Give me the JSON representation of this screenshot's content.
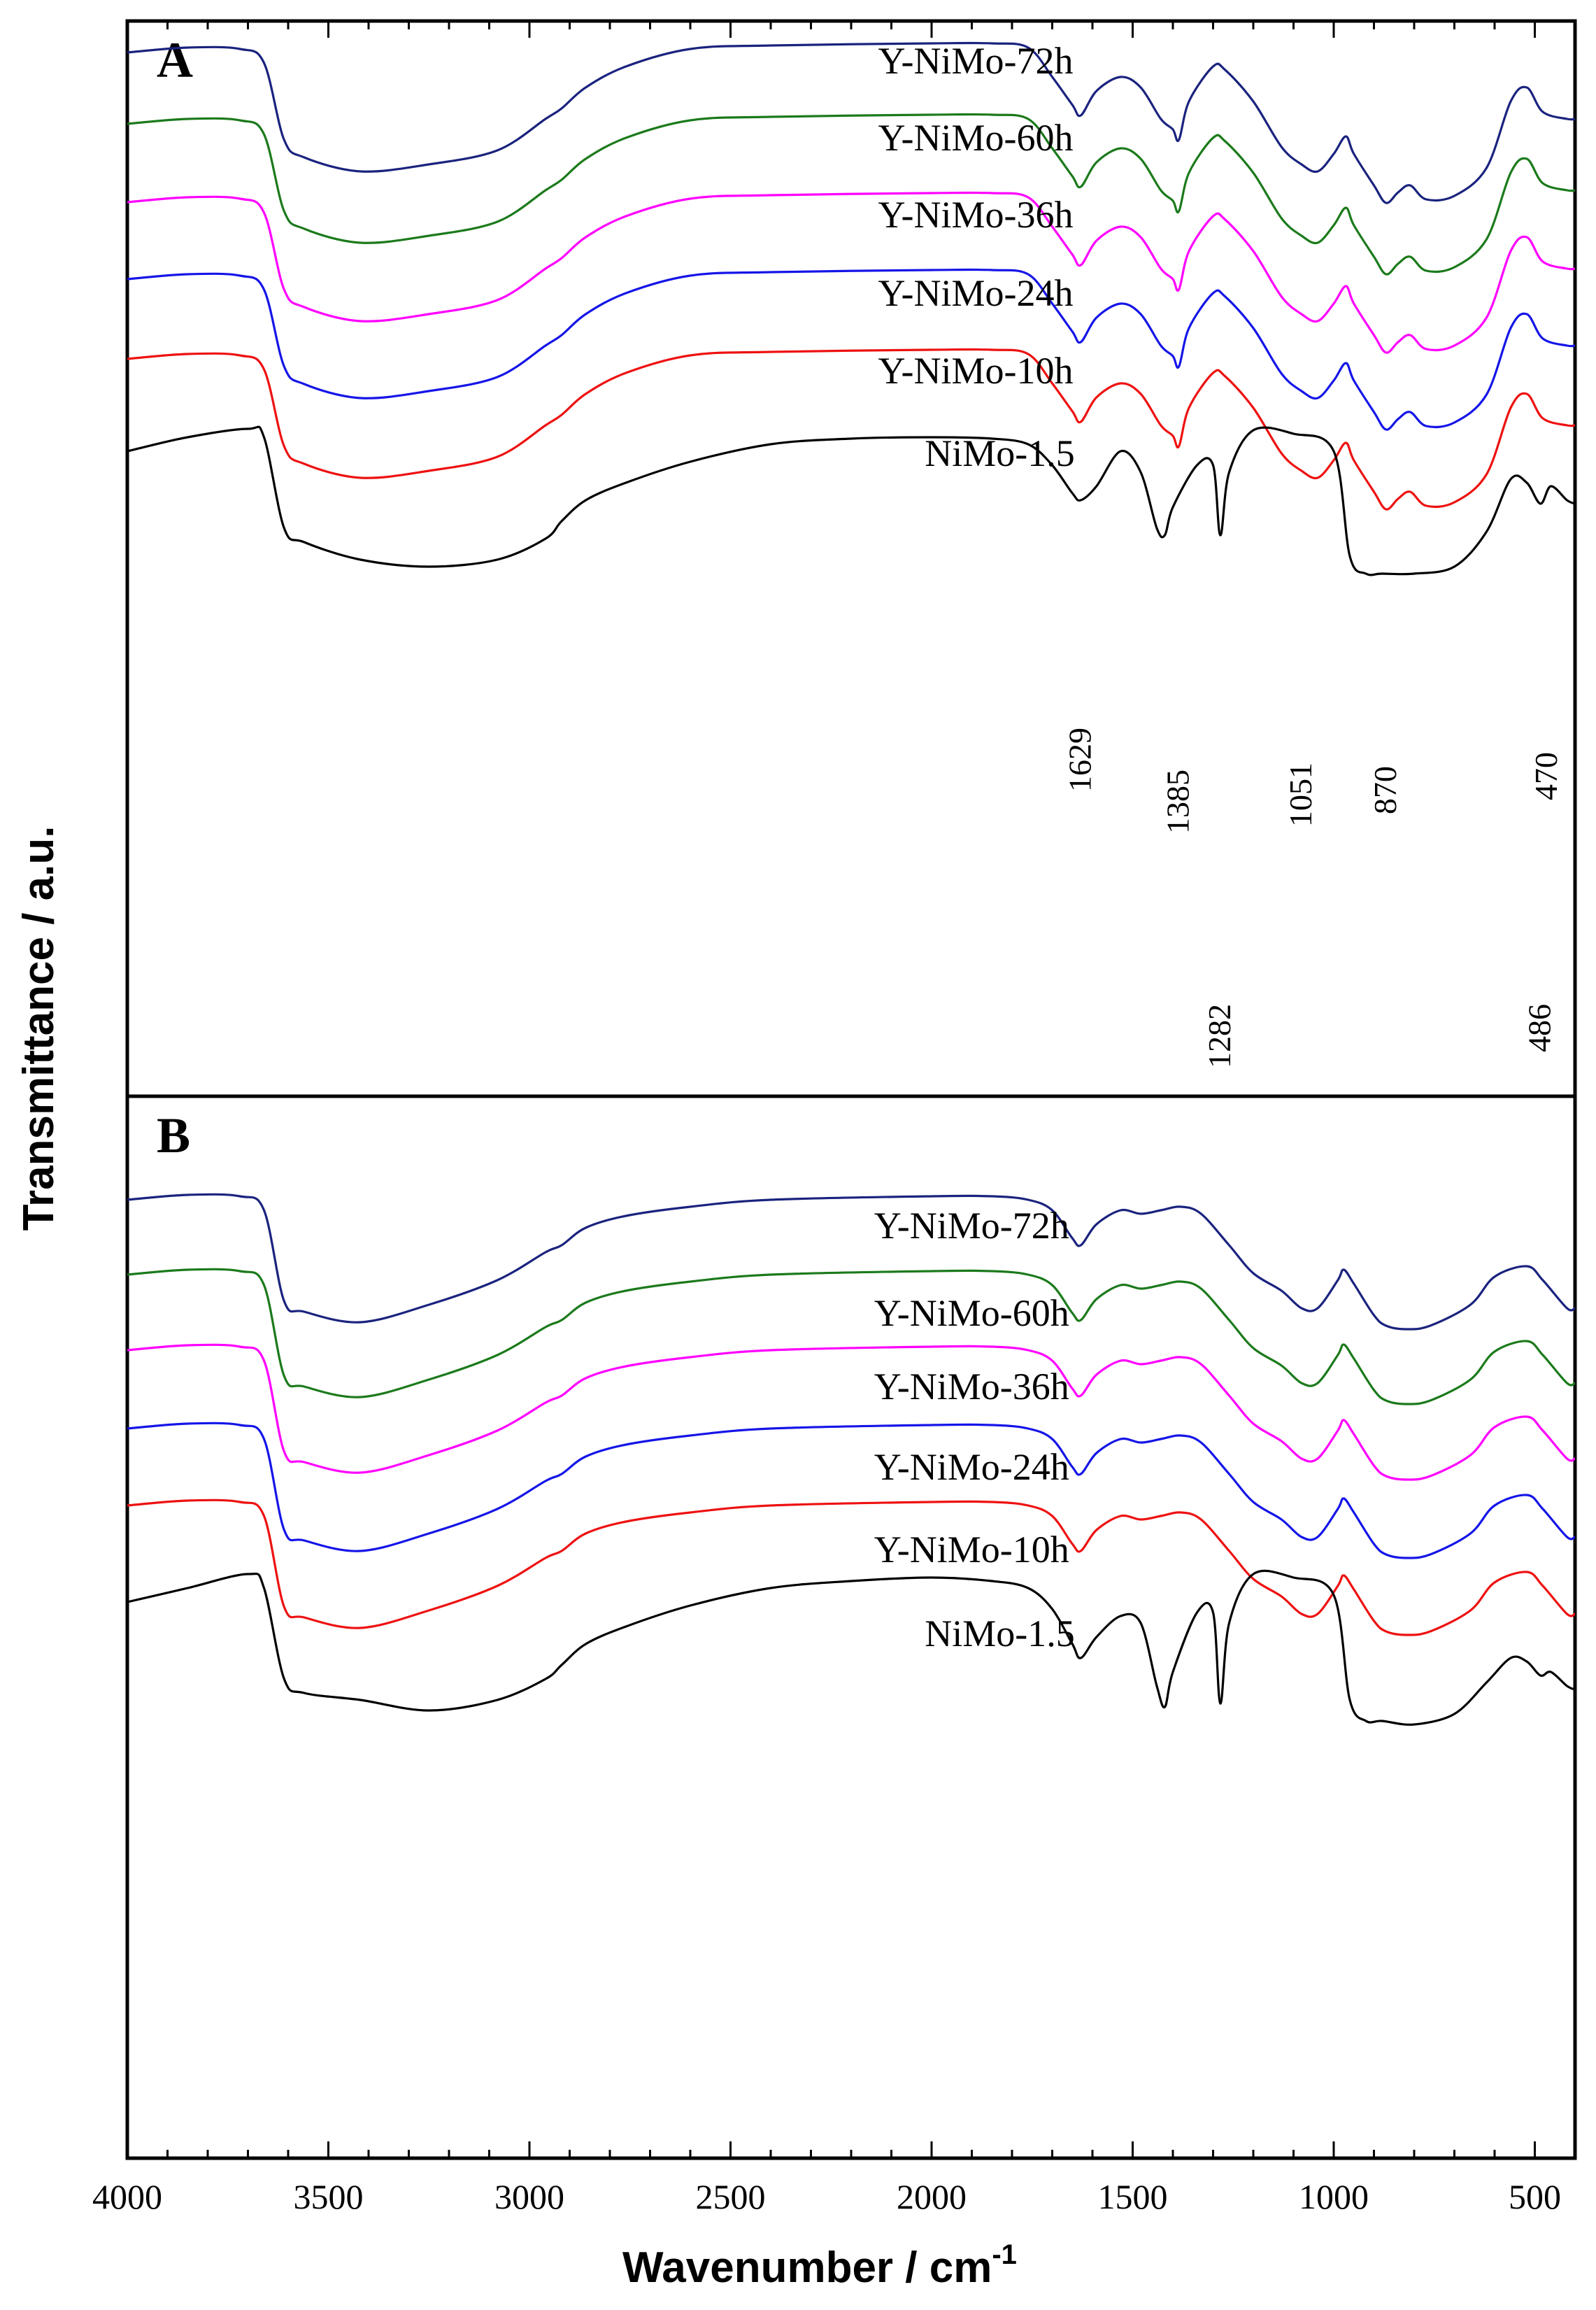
{
  "chart_data": {
    "type": "line",
    "x_range": [
      4000,
      400
    ],
    "xlabel": "Wavenumber / cm",
    "xlabel_superscript": "-1",
    "ylabel": "Transmittance / a.u.",
    "x_ticks": [
      {
        "value": 4000,
        "label": "4000"
      },
      {
        "value": 3500,
        "label": "3500"
      },
      {
        "value": 3000,
        "label": "3000"
      },
      {
        "value": 2500,
        "label": "2500"
      },
      {
        "value": 2000,
        "label": "2000"
      },
      {
        "value": 1500,
        "label": "1500"
      },
      {
        "value": 1000,
        "label": "1000"
      },
      {
        "value": 500,
        "label": "500"
      }
    ],
    "colors": {
      "Y-NiMo-72h": "#1a237e",
      "Y-NiMo-60h": "#1b7a1b",
      "Y-NiMo-36h": "#ff00ff",
      "Y-NiMo-24h": "#1515e8",
      "Y-NiMo-10h": "#ee1111",
      "NiMo-1.5": "#000000"
    },
    "panels": [
      {
        "label": "A",
        "series": [
          {
            "name": "Y-NiMo-72h",
            "label_x": 1960
          },
          {
            "name": "Y-NiMo-60h",
            "label_x": 1960
          },
          {
            "name": "Y-NiMo-36h",
            "label_x": 1960
          },
          {
            "name": "Y-NiMo-24h",
            "label_x": 1960
          },
          {
            "name": "Y-NiMo-10h",
            "label_x": 1960
          },
          {
            "name": "NiMo-1.5",
            "label_x": 1900
          }
        ],
        "annotations": [
          {
            "text": "1629",
            "x": 1629
          },
          {
            "text": "1385",
            "x": 1385
          },
          {
            "text": "1051",
            "x": 1080
          },
          {
            "text": "870",
            "x": 870
          },
          {
            "text": "470",
            "x": 470
          },
          {
            "text": "1282",
            "x": 1282
          },
          {
            "text": "486",
            "x": 486
          }
        ]
      },
      {
        "label": "B",
        "series": [
          {
            "name": "Y-NiMo-72h",
            "label_x": 1970
          },
          {
            "name": "Y-NiMo-60h",
            "label_x": 1970
          },
          {
            "name": "Y-NiMo-36h",
            "label_x": 1970
          },
          {
            "name": "Y-NiMo-24h",
            "label_x": 1970
          },
          {
            "name": "Y-NiMo-10h",
            "label_x": 1970
          },
          {
            "name": "NiMo-1.5",
            "label_x": 1900
          }
        ]
      }
    ]
  }
}
